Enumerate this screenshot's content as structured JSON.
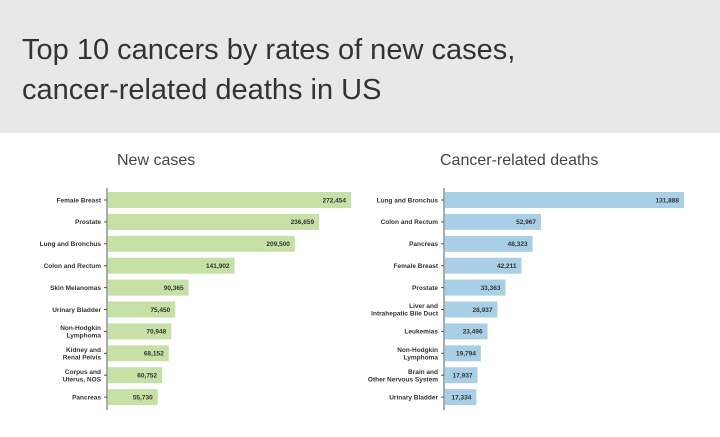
{
  "header": {
    "title_line1": "Top 10 cancers by rates of new cases,",
    "title_line2": "cancer-related deaths in US"
  },
  "chart_data": [
    {
      "type": "bar",
      "orientation": "horizontal",
      "title": "New cases",
      "color": "#c6e0a6",
      "categories": [
        "Female Breast",
        "Prostate",
        "Lung and Bronchus",
        "Colon and Rectum",
        "Skin Melanomas",
        "Urinary Bladder",
        "Non-Hodgkin Lymphoma",
        "Kidney and Renal Pelvis",
        "Corpus and Uterus, NOS",
        "Pancreas"
      ],
      "values": [
        272454,
        236659,
        209500,
        141902,
        90365,
        75450,
        70948,
        68152,
        60752,
        55730
      ],
      "value_labels": [
        "272,454",
        "236,659",
        "209,500",
        "141,902",
        "90,365",
        "75,450",
        "70,948",
        "68,152",
        "60,752",
        "55,730"
      ]
    },
    {
      "type": "bar",
      "orientation": "horizontal",
      "title": "Cancer-related deaths",
      "color": "#a9cfe7",
      "categories": [
        "Lung and Bronchus",
        "Colon and Rectum",
        "Pancreas",
        "Female Breast",
        "Prostate",
        "Liver and Intrahepatic Bile Duct",
        "Leukemias",
        "Non-Hodgkin Lymphoma",
        "Brain and Other Nervous System",
        "Urinary Bladder"
      ],
      "values": [
        131888,
        52967,
        48323,
        42211,
        33363,
        28937,
        23496,
        19794,
        17937,
        17334
      ],
      "value_labels": [
        "131,888",
        "52,967",
        "48,323",
        "42,211",
        "33,363",
        "28,937",
        "23,496",
        "19,794",
        "17,937",
        "17,334"
      ]
    }
  ]
}
